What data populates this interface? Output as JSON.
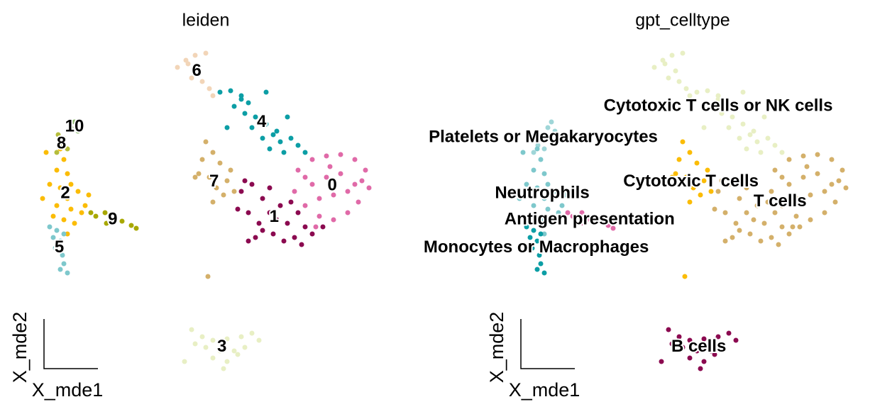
{
  "chart_data": [
    {
      "type": "scatter",
      "title": "leiden",
      "xlabel": "X_mde1",
      "ylabel": "X_mde2",
      "xlim": [
        0,
        500
      ],
      "ylim": [
        0,
        500
      ],
      "series": [
        {
          "name": "0",
          "color": "#e06aa8",
          "x": [
            380,
            400,
            420,
            440,
            460,
            475,
            480,
            465,
            450,
            430,
            410,
            390,
            375,
            400,
            420,
            440,
            460,
            430,
            410,
            450,
            390,
            470,
            425,
            405
          ],
          "y": [
            300,
            315,
            320,
            322,
            315,
            300,
            275,
            255,
            240,
            230,
            235,
            250,
            270,
            280,
            290,
            295,
            280,
            265,
            260,
            270,
            290,
            285,
            305,
            220
          ]
        },
        {
          "name": "1",
          "color": "#8b0a50",
          "x": [
            300,
            315,
            330,
            295,
            310,
            325,
            340,
            355,
            370,
            380,
            390,
            375,
            360,
            345,
            330,
            400,
            415,
            365,
            350,
            320,
            385,
            310,
            305,
            340
          ],
          "y": [
            270,
            280,
            260,
            245,
            240,
            225,
            240,
            250,
            255,
            240,
            220,
            205,
            200,
            210,
            215,
            210,
            220,
            225,
            230,
            205,
            195,
            200,
            285,
            275
          ]
        },
        {
          "name": "2",
          "color": "#fbbc05",
          "x": [
            45,
            50,
            40,
            55,
            30,
            45,
            60,
            70,
            85,
            55,
            40,
            60,
            75,
            50,
            65,
            35,
            20,
            25,
            80,
            55
          ],
          "y": [
            330,
            315,
            300,
            295,
            280,
            275,
            280,
            270,
            265,
            260,
            250,
            245,
            240,
            230,
            225,
            235,
            260,
            325,
            250,
            210
          ]
        },
        {
          "name": "3",
          "color": "#e8efc4",
          "x": [
            230,
            245,
            260,
            280,
            300,
            315,
            325,
            305,
            290,
            270,
            250,
            235,
            220,
            260,
            280,
            275,
            295
          ],
          "y": [
            75,
            65,
            60,
            62,
            65,
            70,
            60,
            50,
            45,
            45,
            50,
            55,
            30,
            35,
            30,
            20,
            40
          ]
        },
        {
          "name": "4",
          "color": "#0c9ea5",
          "x": [
            270,
            285,
            300,
            310,
            290,
            305,
            320,
            315,
            335,
            345,
            355,
            370,
            380,
            390,
            360,
            340,
            330,
            280,
            335,
            365,
            300,
            350
          ],
          "y": [
            410,
            412,
            405,
            395,
            390,
            380,
            375,
            360,
            365,
            350,
            340,
            345,
            335,
            325,
            325,
            330,
            345,
            360,
            410,
            375,
            400,
            355
          ]
        },
        {
          "name": "5",
          "color": "#7ec8cc",
          "x": [
            30,
            40,
            50,
            45,
            38,
            48,
            50,
            45,
            55,
            35
          ],
          "y": [
            220,
            215,
            210,
            200,
            190,
            180,
            168,
            160,
            155,
            205
          ]
        },
        {
          "name": "6",
          "color": "#f2d5b8",
          "x": [
            210,
            222,
            235,
            250,
            240,
            230,
            245,
            255,
            260,
            225
          ],
          "y": [
            445,
            455,
            462,
            465,
            440,
            430,
            425,
            415,
            405,
            450
          ]
        },
        {
          "name": "7",
          "color": "#d4b06a",
          "x": [
            250,
            260,
            245,
            270,
            240,
            255,
            280,
            265,
            275,
            290,
            260,
            285,
            253,
            235
          ],
          "y": [
            340,
            325,
            315,
            310,
            295,
            290,
            285,
            275,
            265,
            270,
            255,
            300,
            150,
            290
          ]
        },
        {
          "name": "8",
          "color": "#b5bd3c",
          "x": [
            42,
            50,
            46,
            55,
            40
          ],
          "y": [
            350,
            345,
            335,
            330,
            325
          ]
        },
        {
          "name": "9",
          "color": "#a8a800",
          "x": [
            95,
            108,
            120,
            132,
            145,
            152,
            110,
            88
          ],
          "y": [
            235,
            240,
            230,
            228,
            222,
            218,
            225,
            240
          ]
        },
        {
          "name": "10",
          "color": "#8fbc6f",
          "x": [
            65,
            60,
            70
          ],
          "y": [
            368,
            360,
            355
          ]
        }
      ]
    },
    {
      "type": "scatter",
      "title": "gpt_celltype",
      "xlabel": "X_mde1",
      "ylabel": "X_mde2",
      "xlim": [
        0,
        500
      ],
      "ylim": [
        0,
        500
      ],
      "series": [
        {
          "name": "T cells",
          "color": "#d4b06a",
          "x": [
            380,
            400,
            420,
            440,
            460,
            475,
            480,
            465,
            450,
            430,
            410,
            390,
            375,
            400,
            420,
            440,
            460,
            430,
            410,
            450,
            390,
            470,
            425,
            405,
            300,
            315,
            330,
            295,
            310,
            325,
            340,
            355,
            370,
            380,
            390,
            375,
            360,
            345,
            330,
            400,
            415,
            365,
            350,
            320,
            385,
            310,
            305,
            340
          ],
          "y": [
            300,
            315,
            320,
            322,
            315,
            300,
            275,
            255,
            240,
            230,
            235,
            250,
            270,
            280,
            290,
            295,
            280,
            265,
            260,
            270,
            290,
            285,
            305,
            220,
            270,
            280,
            260,
            245,
            240,
            225,
            240,
            250,
            255,
            240,
            220,
            205,
            200,
            210,
            215,
            210,
            220,
            225,
            230,
            205,
            195,
            200,
            285,
            275
          ]
        },
        {
          "name": "Cytotoxic T cells",
          "color": "#fbbc05",
          "x": [
            250,
            260,
            245,
            270,
            240,
            255,
            280,
            265,
            275,
            290,
            260,
            285,
            253,
            235
          ],
          "y": [
            340,
            325,
            315,
            310,
            295,
            290,
            285,
            275,
            265,
            270,
            255,
            300,
            150,
            290
          ]
        },
        {
          "name": "Cytotoxic T cells or NK cells",
          "color": "#e8efc4",
          "x": [
            270,
            285,
            300,
            310,
            290,
            305,
            320,
            315,
            335,
            345,
            355,
            370,
            380,
            390,
            360,
            340,
            330,
            280,
            335,
            365,
            300,
            350,
            210,
            222,
            235,
            250,
            240,
            230,
            245,
            255,
            260,
            225
          ],
          "y": [
            410,
            412,
            405,
            395,
            390,
            380,
            375,
            360,
            365,
            350,
            340,
            345,
            335,
            325,
            325,
            330,
            345,
            360,
            410,
            375,
            400,
            355,
            445,
            455,
            462,
            465,
            440,
            430,
            425,
            415,
            405,
            450
          ]
        },
        {
          "name": "Platelets or Megakaryocytes",
          "color": "#9fd6d8",
          "x": [
            42,
            50,
            46,
            55,
            40,
            65,
            60,
            70
          ],
          "y": [
            350,
            345,
            335,
            330,
            325,
            368,
            360,
            355
          ]
        },
        {
          "name": "Neutrophils",
          "color": "#7ec8cc",
          "x": [
            45,
            50,
            40,
            55,
            30,
            45,
            60,
            70,
            85,
            55,
            40,
            60,
            75,
            50,
            65,
            35,
            20,
            25,
            80,
            55
          ],
          "y": [
            330,
            315,
            300,
            295,
            280,
            275,
            280,
            270,
            265,
            260,
            250,
            245,
            240,
            230,
            225,
            235,
            260,
            325,
            250,
            210
          ]
        },
        {
          "name": "Antigen presentation",
          "color": "#e06aa8",
          "x": [
            95,
            108,
            120,
            132,
            145,
            152,
            110,
            88
          ],
          "y": [
            235,
            240,
            230,
            228,
            222,
            218,
            225,
            240
          ]
        },
        {
          "name": "Monocytes or Macrophages",
          "color": "#0c9ea5",
          "x": [
            30,
            40,
            50,
            45,
            38,
            48,
            50,
            45,
            55,
            35
          ],
          "y": [
            220,
            215,
            210,
            200,
            190,
            180,
            168,
            160,
            155,
            205
          ]
        },
        {
          "name": "B cells",
          "color": "#8b0a50",
          "x": [
            230,
            245,
            260,
            280,
            300,
            315,
            325,
            305,
            290,
            270,
            250,
            235,
            220,
            260,
            280,
            275,
            295
          ],
          "y": [
            75,
            65,
            60,
            62,
            65,
            70,
            60,
            50,
            45,
            45,
            50,
            55,
            30,
            35,
            30,
            20,
            40
          ]
        }
      ]
    }
  ]
}
